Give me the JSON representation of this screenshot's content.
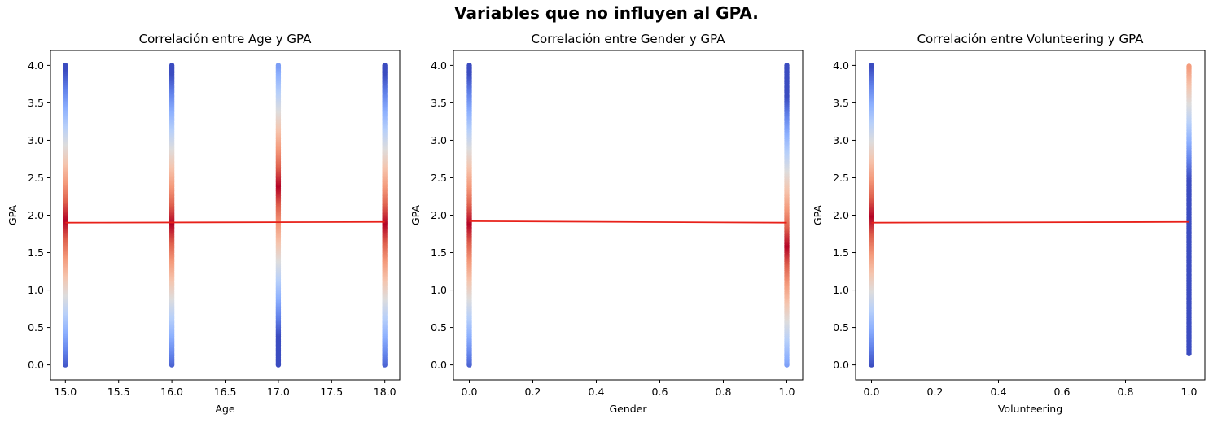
{
  "figure": {
    "suptitle": "Variables que no influyen al GPA."
  },
  "chart_data": [
    {
      "type": "scatter",
      "title": "Correlación entre Age y GPA",
      "xlabel": "Age",
      "ylabel": "GPA",
      "xlim": [
        14.86,
        18.14
      ],
      "ylim": [
        -0.2,
        4.2
      ],
      "xticks": [
        15.0,
        15.5,
        16.0,
        16.5,
        17.0,
        17.5,
        18.0
      ],
      "xtick_labels": [
        "15.0",
        "15.5",
        "16.0",
        "16.5",
        "17.0",
        "17.5",
        "18.0"
      ],
      "yticks": [
        0.0,
        0.5,
        1.0,
        1.5,
        2.0,
        2.5,
        3.0,
        3.5,
        4.0
      ],
      "ytick_labels": [
        "0.0",
        "0.5",
        "1.0",
        "1.5",
        "2.0",
        "2.5",
        "3.0",
        "3.5",
        "4.0"
      ],
      "colormap": "coolwarm",
      "x_values": [
        15,
        16,
        17,
        18
      ],
      "y_range": [
        0.0,
        4.0
      ],
      "density_center": [
        1.95,
        1.9,
        2.4,
        1.9
      ],
      "regression_line": {
        "x": [
          15,
          18
        ],
        "y": [
          1.9,
          1.91
        ],
        "color": "#e8211a"
      },
      "grid": false,
      "legend": "none"
    },
    {
      "type": "scatter",
      "title": "Correlación entre Gender y GPA",
      "xlabel": "Gender",
      "ylabel": "GPA",
      "xlim": [
        -0.05,
        1.05
      ],
      "ylim": [
        -0.2,
        4.2
      ],
      "xticks": [
        0.0,
        0.2,
        0.4,
        0.6,
        0.8,
        1.0
      ],
      "xtick_labels": [
        "0.0",
        "0.2",
        "0.4",
        "0.6",
        "0.8",
        "1.0"
      ],
      "yticks": [
        0.0,
        0.5,
        1.0,
        1.5,
        2.0,
        2.5,
        3.0,
        3.5,
        4.0
      ],
      "ytick_labels": [
        "0.0",
        "0.5",
        "1.0",
        "1.5",
        "2.0",
        "2.5",
        "3.0",
        "3.5",
        "4.0"
      ],
      "colormap": "coolwarm",
      "x_values": [
        0,
        1
      ],
      "y_range": [
        0.0,
        4.0
      ],
      "density_center": [
        1.9,
        1.6
      ],
      "regression_line": {
        "x": [
          0,
          1
        ],
        "y": [
          1.92,
          1.9
        ],
        "color": "#e8211a"
      },
      "grid": false,
      "legend": "none"
    },
    {
      "type": "scatter",
      "title": "Correlación entre Volunteering y GPA",
      "xlabel": "Volunteering",
      "ylabel": "GPA",
      "xlim": [
        -0.05,
        1.05
      ],
      "ylim": [
        -0.2,
        4.2
      ],
      "xticks": [
        0.0,
        0.2,
        0.4,
        0.6,
        0.8,
        1.0
      ],
      "xtick_labels": [
        "0.0",
        "0.2",
        "0.4",
        "0.6",
        "0.8",
        "1.0"
      ],
      "yticks": [
        0.0,
        0.5,
        1.0,
        1.5,
        2.0,
        2.5,
        3.0,
        3.5,
        4.0
      ],
      "ytick_labels": [
        "0.0",
        "0.5",
        "1.0",
        "1.5",
        "2.0",
        "2.5",
        "3.0",
        "3.5",
        "4.0"
      ],
      "colormap": "coolwarm",
      "x_values": [
        0,
        1
      ],
      "y_range": [
        0.0,
        4.0
      ],
      "y_range_per_x": [
        [
          0.0,
          4.0
        ],
        [
          0.15,
          4.0
        ]
      ],
      "density_center": [
        2.0,
        4.5
      ],
      "regression_line": {
        "x": [
          0,
          1
        ],
        "y": [
          1.9,
          1.91
        ],
        "color": "#e8211a"
      },
      "grid": false,
      "legend": "none"
    }
  ]
}
